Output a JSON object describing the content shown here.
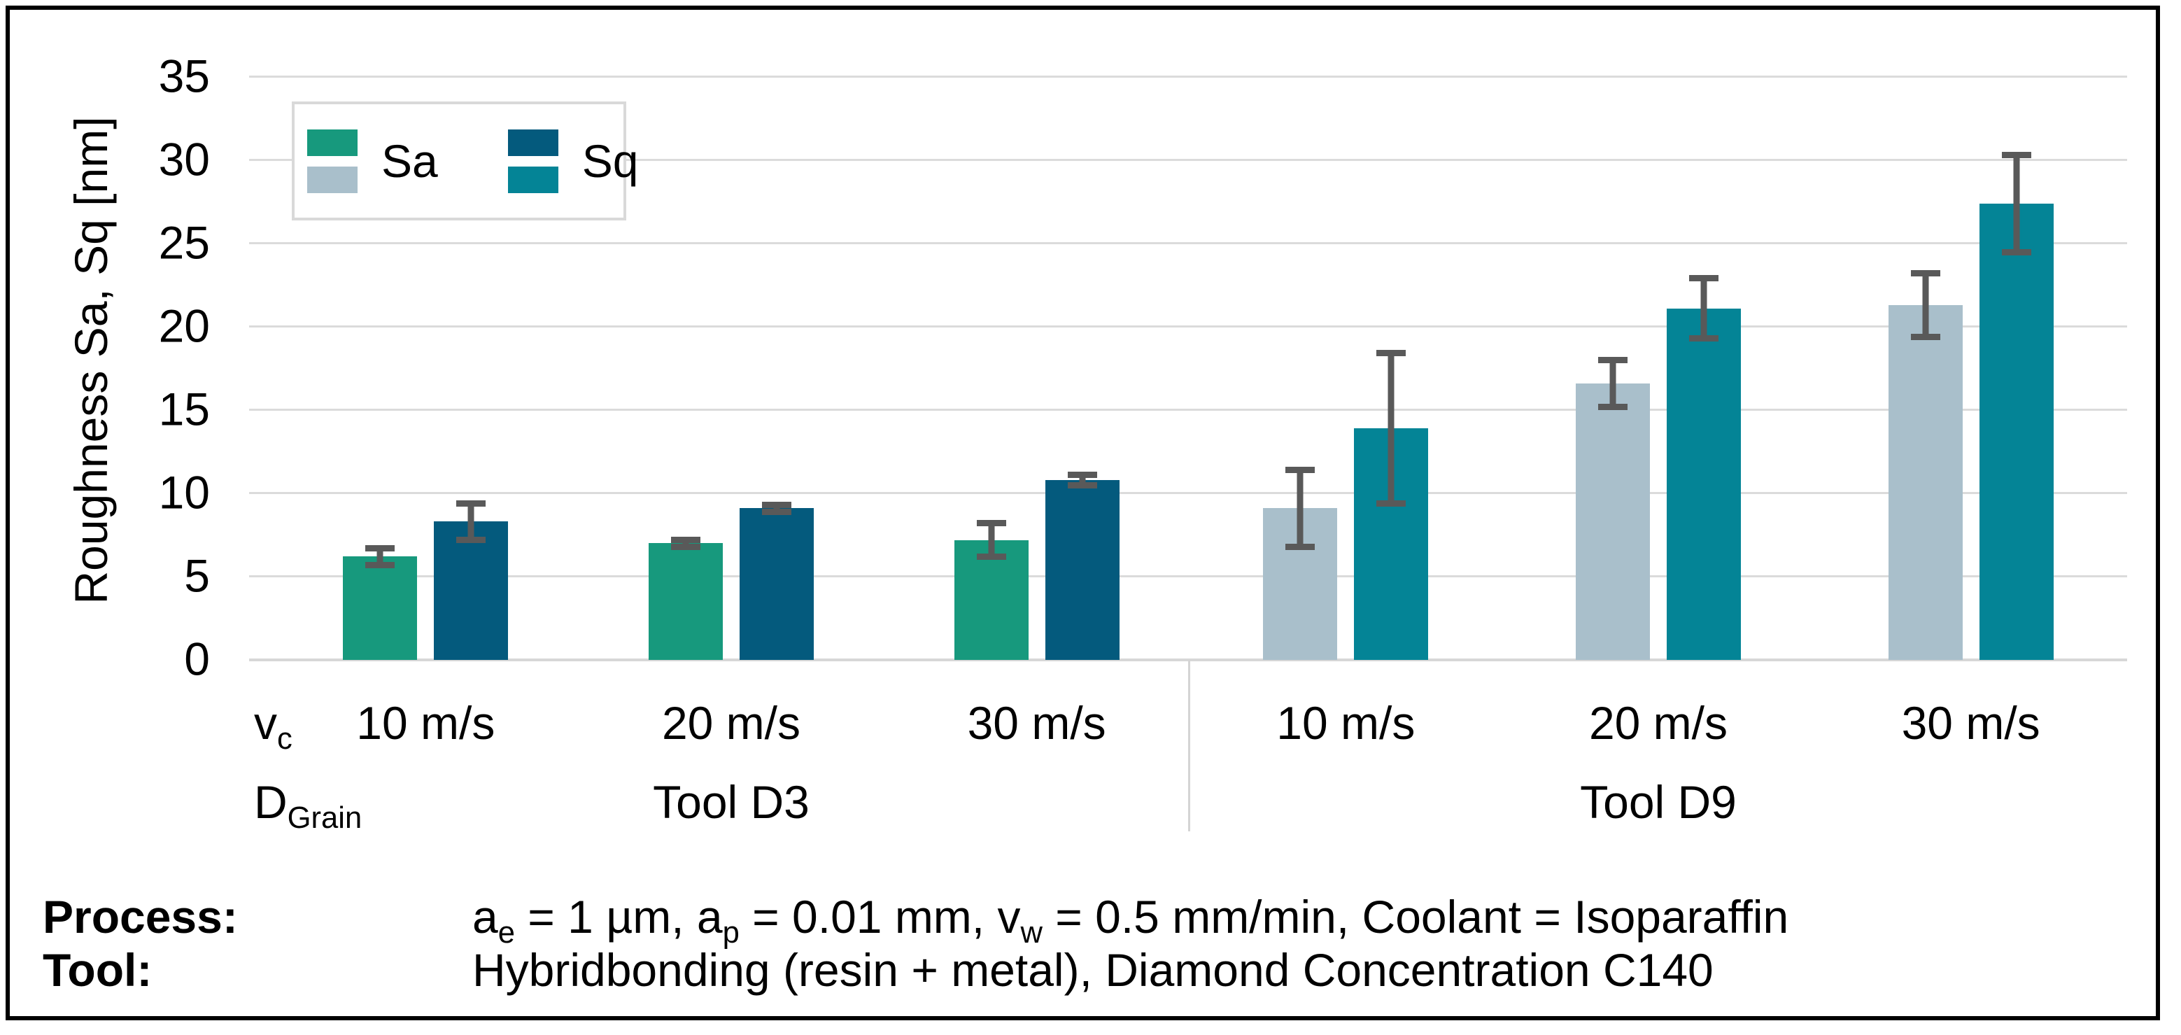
{
  "chart_data": {
    "type": "bar",
    "title": "",
    "ylabel": "Roughness Sa, Sq [nm]",
    "ylim": [
      0,
      35
    ],
    "yticks": [
      35,
      30,
      25,
      20,
      15,
      10,
      5,
      0
    ],
    "grid": true,
    "legend_position": "top-left",
    "x_variable": {
      "base": "v",
      "sub": "c"
    },
    "group_variable": {
      "base": "D",
      "sub": "Grain"
    },
    "legend": [
      {
        "label": "Sa",
        "colors": [
          "#17997D",
          "#A9BFCB"
        ]
      },
      {
        "label": "Sq",
        "colors": [
          "#045A7D",
          "#048496"
        ]
      }
    ],
    "error_bar_color": "#595959",
    "sections": [
      {
        "label": "Tool D3",
        "categories": [
          "10 m/s",
          "20 m/s",
          "30 m/s"
        ],
        "series": [
          {
            "name": "Sa",
            "color": "#17997D",
            "values": [
              6.2,
              7.0,
              7.2
            ],
            "errors": [
              0.7,
              0.4,
              1.2
            ]
          },
          {
            "name": "Sq",
            "color": "#045A7D",
            "values": [
              8.3,
              9.1,
              10.8
            ],
            "errors": [
              1.3,
              0.4,
              0.5
            ]
          }
        ]
      },
      {
        "label": "Tool D9",
        "categories": [
          "10 m/s",
          "20 m/s",
          "30 m/s"
        ],
        "series": [
          {
            "name": "Sa",
            "color": "#A9BFCB",
            "values": [
              9.1,
              16.6,
              21.3
            ],
            "errors": [
              2.5,
              1.6,
              2.1
            ]
          },
          {
            "name": "Sq",
            "color": "#048496",
            "values": [
              13.9,
              21.1,
              27.4
            ],
            "errors": [
              4.7,
              2.0,
              3.1
            ]
          }
        ]
      }
    ]
  },
  "annotations": {
    "rows": [
      {
        "name": "process",
        "label": "Process:",
        "parts": [
          {
            "t": "a"
          },
          {
            "sub": "e"
          },
          {
            "t": " = 1 µm, a"
          },
          {
            "sub": "p"
          },
          {
            "t": " = 0.01 mm, v"
          },
          {
            "sub": "w"
          },
          {
            "t": " = 0.5 mm/min, Coolant = Isoparaffin"
          }
        ]
      },
      {
        "name": "tool",
        "label": "Tool:",
        "parts": [
          {
            "t": "Hybridbonding (resin + metal), Diamond Concentration C140"
          }
        ]
      }
    ]
  },
  "colors": {
    "gridline": "#DBDBDB",
    "axis_line": "#D7D7D7",
    "frame_border": "#000000",
    "background": "#FFFFFF"
  }
}
